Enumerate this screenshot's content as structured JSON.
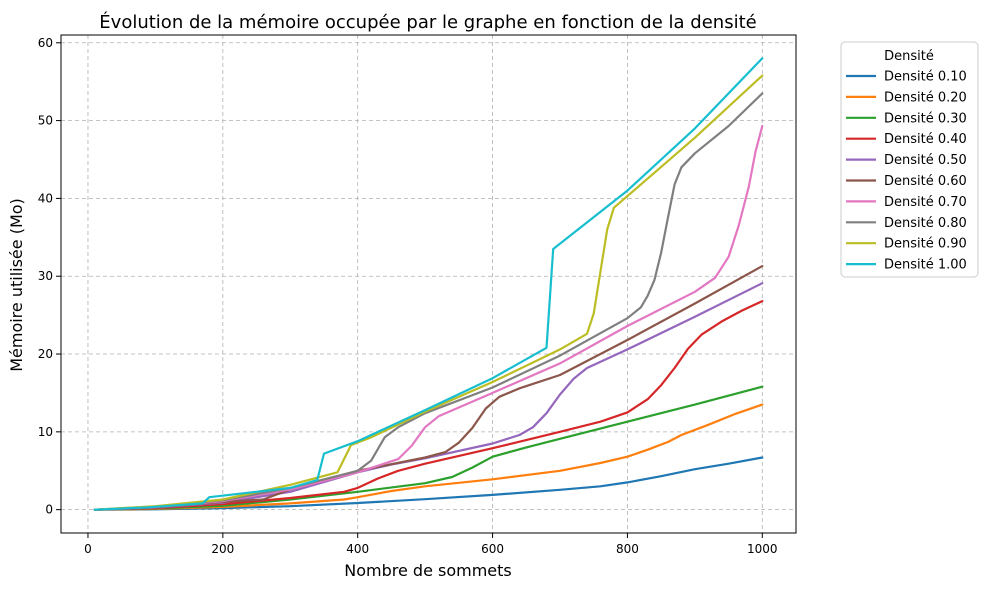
{
  "chart_data": {
    "type": "line",
    "title": "Évolution de la mémoire occupée par le graphe en fonction de la densité",
    "xlabel": "Nombre de sommets",
    "ylabel": "Mémoire utilisée (Mo)",
    "xlim": [
      -40,
      1050
    ],
    "ylim": [
      -3,
      61
    ],
    "xticks": [
      0,
      200,
      400,
      600,
      800,
      1000
    ],
    "xtick_labels": [
      "0",
      "200",
      "400",
      "600",
      "800",
      "1000"
    ],
    "yticks": [
      0,
      10,
      20,
      30,
      40,
      50,
      60
    ],
    "ytick_labels": [
      "0",
      "10",
      "20",
      "30",
      "40",
      "50",
      "60"
    ],
    "grid": true,
    "legend": {
      "title": "Densité",
      "placement": "outside-right-top"
    },
    "series": [
      {
        "name": "Densité 0.10",
        "color": "#1f77b4",
        "points": [
          [
            10,
            0.0
          ],
          [
            100,
            0.05
          ],
          [
            200,
            0.2
          ],
          [
            300,
            0.45
          ],
          [
            400,
            0.85
          ],
          [
            500,
            1.35
          ],
          [
            600,
            1.9
          ],
          [
            700,
            2.55
          ],
          [
            760,
            3.0
          ],
          [
            800,
            3.5
          ],
          [
            850,
            4.3
          ],
          [
            900,
            5.2
          ],
          [
            950,
            5.9
          ],
          [
            1000,
            6.7
          ]
        ]
      },
      {
        "name": "Densité 0.20",
        "color": "#ff7f0e",
        "points": [
          [
            10,
            0.0
          ],
          [
            100,
            0.1
          ],
          [
            200,
            0.35
          ],
          [
            300,
            0.8
          ],
          [
            380,
            1.3
          ],
          [
            400,
            1.6
          ],
          [
            450,
            2.4
          ],
          [
            500,
            3.0
          ],
          [
            600,
            3.9
          ],
          [
            700,
            5.0
          ],
          [
            760,
            6.0
          ],
          [
            800,
            6.8
          ],
          [
            830,
            7.7
          ],
          [
            860,
            8.7
          ],
          [
            880,
            9.6
          ],
          [
            920,
            10.9
          ],
          [
            960,
            12.3
          ],
          [
            1000,
            13.5
          ]
        ]
      },
      {
        "name": "Densité 0.30",
        "color": "#2ca02c",
        "points": [
          [
            10,
            0.0
          ],
          [
            100,
            0.15
          ],
          [
            200,
            0.5
          ],
          [
            300,
            1.3
          ],
          [
            400,
            2.3
          ],
          [
            500,
            3.4
          ],
          [
            540,
            4.2
          ],
          [
            570,
            5.4
          ],
          [
            600,
            6.8
          ],
          [
            650,
            8.0
          ],
          [
            700,
            9.1
          ],
          [
            800,
            11.3
          ],
          [
            900,
            13.5
          ],
          [
            1000,
            15.8
          ]
        ]
      },
      {
        "name": "Densité 0.40",
        "color": "#d62728",
        "points": [
          [
            10,
            0.0
          ],
          [
            100,
            0.2
          ],
          [
            200,
            0.7
          ],
          [
            300,
            1.5
          ],
          [
            380,
            2.3
          ],
          [
            400,
            2.8
          ],
          [
            430,
            4.0
          ],
          [
            460,
            5.0
          ],
          [
            500,
            5.9
          ],
          [
            600,
            7.9
          ],
          [
            700,
            10.0
          ],
          [
            760,
            11.3
          ],
          [
            800,
            12.5
          ],
          [
            830,
            14.2
          ],
          [
            850,
            16.0
          ],
          [
            870,
            18.2
          ],
          [
            890,
            20.7
          ],
          [
            910,
            22.5
          ],
          [
            940,
            24.2
          ],
          [
            970,
            25.6
          ],
          [
            1000,
            26.8
          ]
        ]
      },
      {
        "name": "Densité 0.50",
        "color": "#9467bd",
        "points": [
          [
            10,
            0.0
          ],
          [
            100,
            0.25
          ],
          [
            200,
            0.9
          ],
          [
            300,
            2.3
          ],
          [
            360,
            3.8
          ],
          [
            400,
            4.8
          ],
          [
            450,
            5.8
          ],
          [
            500,
            6.6
          ],
          [
            600,
            8.5
          ],
          [
            640,
            9.6
          ],
          [
            660,
            10.6
          ],
          [
            680,
            12.4
          ],
          [
            700,
            14.8
          ],
          [
            720,
            16.8
          ],
          [
            740,
            18.2
          ],
          [
            800,
            20.6
          ],
          [
            900,
            24.8
          ],
          [
            1000,
            29.1
          ]
        ]
      },
      {
        "name": "Densité 0.60",
        "color": "#8c564b",
        "points": [
          [
            10,
            0.0
          ],
          [
            100,
            0.3
          ],
          [
            200,
            1.0
          ],
          [
            260,
            1.3
          ],
          [
            300,
            2.6
          ],
          [
            360,
            4.0
          ],
          [
            400,
            5.0
          ],
          [
            500,
            6.7
          ],
          [
            530,
            7.4
          ],
          [
            550,
            8.6
          ],
          [
            570,
            10.5
          ],
          [
            590,
            13.0
          ],
          [
            610,
            14.5
          ],
          [
            640,
            15.6
          ],
          [
            700,
            17.3
          ],
          [
            800,
            21.8
          ],
          [
            900,
            26.5
          ],
          [
            1000,
            31.3
          ]
        ]
      },
      {
        "name": "Densité 0.70",
        "color": "#e377c2",
        "points": [
          [
            10,
            0.0
          ],
          [
            100,
            0.35
          ],
          [
            200,
            1.1
          ],
          [
            300,
            2.6
          ],
          [
            400,
            4.8
          ],
          [
            460,
            6.5
          ],
          [
            480,
            8.2
          ],
          [
            500,
            10.6
          ],
          [
            520,
            12.0
          ],
          [
            600,
            15.0
          ],
          [
            700,
            18.8
          ],
          [
            800,
            23.6
          ],
          [
            900,
            28.0
          ],
          [
            930,
            29.8
          ],
          [
            950,
            32.5
          ],
          [
            965,
            36.5
          ],
          [
            980,
            41.5
          ],
          [
            990,
            46.0
          ],
          [
            1000,
            49.3
          ]
        ]
      },
      {
        "name": "Densité 0.80",
        "color": "#7f7f7f",
        "points": [
          [
            10,
            0.0
          ],
          [
            100,
            0.4
          ],
          [
            200,
            1.2
          ],
          [
            300,
            2.8
          ],
          [
            400,
            5.0
          ],
          [
            420,
            6.3
          ],
          [
            440,
            9.3
          ],
          [
            460,
            10.6
          ],
          [
            500,
            12.4
          ],
          [
            600,
            15.7
          ],
          [
            700,
            19.8
          ],
          [
            800,
            24.6
          ],
          [
            820,
            26.0
          ],
          [
            830,
            27.5
          ],
          [
            840,
            29.5
          ],
          [
            850,
            33.0
          ],
          [
            860,
            37.5
          ],
          [
            870,
            41.8
          ],
          [
            880,
            44.0
          ],
          [
            900,
            45.8
          ],
          [
            950,
            49.3
          ],
          [
            1000,
            53.5
          ]
        ]
      },
      {
        "name": "Densité 0.90",
        "color": "#bcbd22",
        "points": [
          [
            10,
            0.0
          ],
          [
            100,
            0.45
          ],
          [
            200,
            1.3
          ],
          [
            300,
            3.2
          ],
          [
            370,
            4.8
          ],
          [
            390,
            8.3
          ],
          [
            420,
            9.3
          ],
          [
            500,
            12.6
          ],
          [
            600,
            16.4
          ],
          [
            700,
            20.6
          ],
          [
            740,
            22.6
          ],
          [
            750,
            25.2
          ],
          [
            770,
            36.0
          ],
          [
            780,
            38.8
          ],
          [
            800,
            40.3
          ],
          [
            900,
            47.8
          ],
          [
            1000,
            55.8
          ]
        ]
      },
      {
        "name": "Densité 1.00",
        "color": "#17becf",
        "points": [
          [
            10,
            0.0
          ],
          [
            90,
            0.3
          ],
          [
            170,
            0.8
          ],
          [
            180,
            1.6
          ],
          [
            300,
            2.8
          ],
          [
            340,
            3.8
          ],
          [
            350,
            7.2
          ],
          [
            400,
            8.8
          ],
          [
            500,
            12.8
          ],
          [
            600,
            16.9
          ],
          [
            680,
            20.8
          ],
          [
            690,
            33.5
          ],
          [
            800,
            41.0
          ],
          [
            900,
            49.0
          ],
          [
            1000,
            58.0
          ]
        ]
      }
    ]
  }
}
